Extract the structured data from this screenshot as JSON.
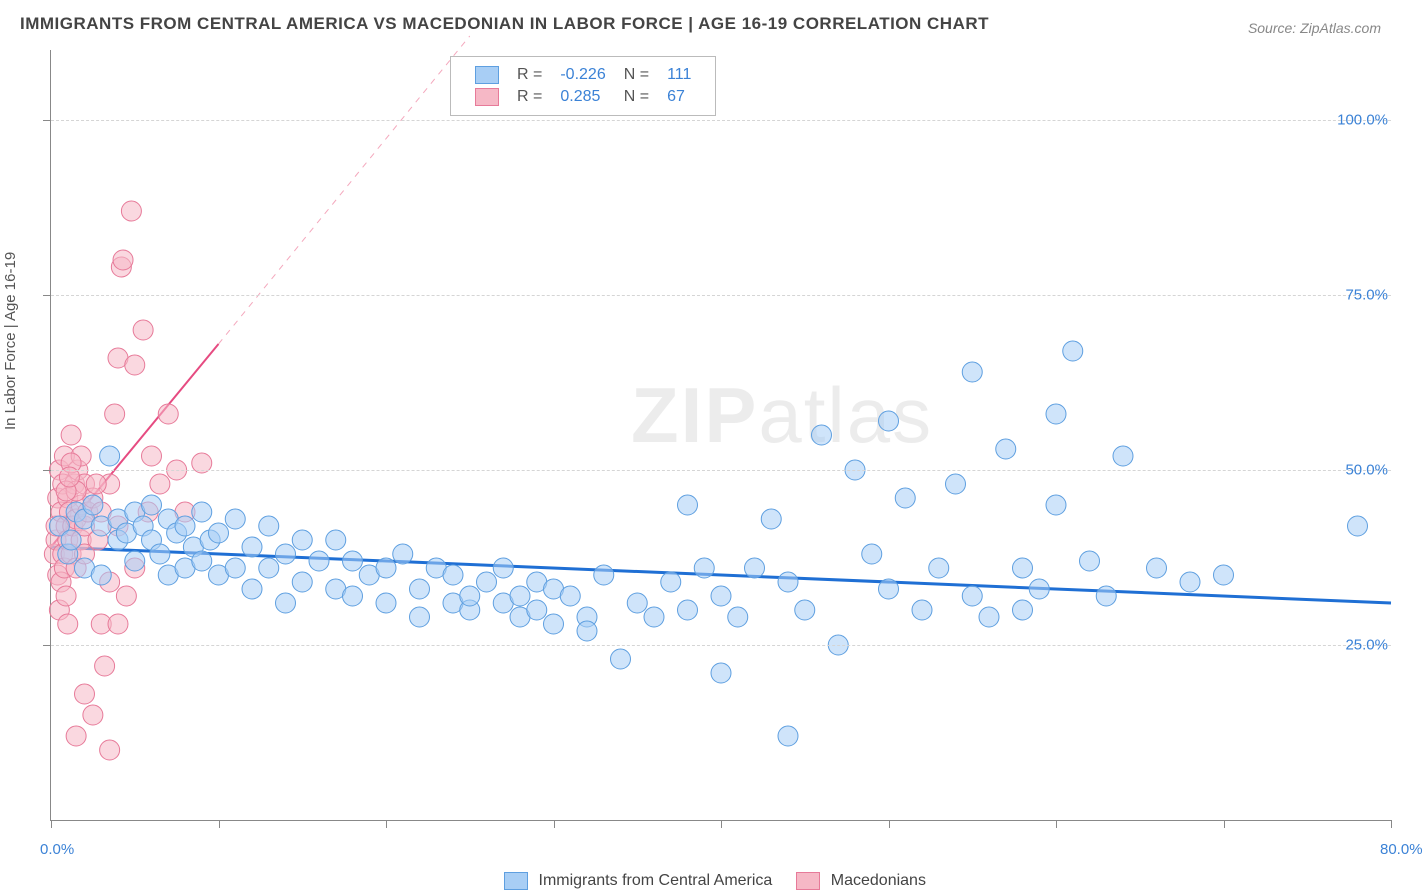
{
  "title": "IMMIGRANTS FROM CENTRAL AMERICA VS MACEDONIAN IN LABOR FORCE | AGE 16-19 CORRELATION CHART",
  "source": "Source: ZipAtlas.com",
  "y_axis_label": "In Labor Force | Age 16-19",
  "watermark_a": "ZIP",
  "watermark_b": "atlas",
  "chart": {
    "type": "scatter",
    "xlim": [
      0,
      80
    ],
    "ylim": [
      0,
      110
    ],
    "x_ticks": [
      0,
      10,
      20,
      30,
      40,
      50,
      60,
      70,
      80
    ],
    "x_tick_labels": {
      "0": "0.0%",
      "80": "80.0%"
    },
    "y_grid": [
      25,
      50,
      75,
      100
    ],
    "y_tick_labels": {
      "25": "25.0%",
      "50": "50.0%",
      "75": "75.0%",
      "100": "100.0%"
    },
    "background_color": "#ffffff",
    "grid_color": "#d5d5d5",
    "axis_color": "#888888",
    "tick_label_color": "#3b82d6",
    "series": [
      {
        "id": "central_america",
        "label": "Immigrants from Central America",
        "fill": "#a8cef5",
        "fill_opacity": 0.55,
        "stroke": "#5e9fe0",
        "marker_r": 10,
        "R": "-0.226",
        "N": "111",
        "trend": {
          "x1": 0,
          "y1": 39,
          "x2": 80,
          "y2": 31,
          "color": "#1f6fd4",
          "width": 3,
          "dash": {
            "x1": 0,
            "y1": 39,
            "x2": 0,
            "y2": 39
          }
        },
        "points": [
          [
            0.5,
            42
          ],
          [
            1,
            38
          ],
          [
            1.2,
            40
          ],
          [
            1.5,
            44
          ],
          [
            2,
            43
          ],
          [
            2,
            36
          ],
          [
            2.5,
            45
          ],
          [
            3,
            35
          ],
          [
            3,
            42
          ],
          [
            3.5,
            52
          ],
          [
            4,
            40
          ],
          [
            4,
            43
          ],
          [
            4.5,
            41
          ],
          [
            5,
            37
          ],
          [
            5,
            44
          ],
          [
            5.5,
            42
          ],
          [
            6,
            40
          ],
          [
            6,
            45
          ],
          [
            6.5,
            38
          ],
          [
            7,
            43
          ],
          [
            7,
            35
          ],
          [
            7.5,
            41
          ],
          [
            8,
            36
          ],
          [
            8,
            42
          ],
          [
            8.5,
            39
          ],
          [
            9,
            44
          ],
          [
            9,
            37
          ],
          [
            9.5,
            40
          ],
          [
            10,
            35
          ],
          [
            10,
            41
          ],
          [
            11,
            43
          ],
          [
            11,
            36
          ],
          [
            12,
            39
          ],
          [
            12,
            33
          ],
          [
            13,
            42
          ],
          [
            13,
            36
          ],
          [
            14,
            38
          ],
          [
            14,
            31
          ],
          [
            15,
            40
          ],
          [
            15,
            34
          ],
          [
            16,
            37
          ],
          [
            17,
            33
          ],
          [
            17,
            40
          ],
          [
            18,
            32
          ],
          [
            18,
            37
          ],
          [
            19,
            35
          ],
          [
            20,
            31
          ],
          [
            20,
            36
          ],
          [
            21,
            38
          ],
          [
            22,
            33
          ],
          [
            22,
            29
          ],
          [
            23,
            36
          ],
          [
            24,
            31
          ],
          [
            24,
            35
          ],
          [
            25,
            30
          ],
          [
            25,
            32
          ],
          [
            26,
            34
          ],
          [
            27,
            31
          ],
          [
            27,
            36
          ],
          [
            28,
            29
          ],
          [
            28,
            32
          ],
          [
            29,
            34
          ],
          [
            29,
            30
          ],
          [
            30,
            33
          ],
          [
            30,
            28
          ],
          [
            31,
            32
          ],
          [
            32,
            29
          ],
          [
            32,
            27
          ],
          [
            33,
            35
          ],
          [
            34,
            23
          ],
          [
            35,
            31
          ],
          [
            36,
            29
          ],
          [
            37,
            34
          ],
          [
            38,
            45
          ],
          [
            38,
            30
          ],
          [
            39,
            36
          ],
          [
            40,
            21
          ],
          [
            40,
            32
          ],
          [
            41,
            29
          ],
          [
            42,
            36
          ],
          [
            43,
            43
          ],
          [
            44,
            12
          ],
          [
            44,
            34
          ],
          [
            45,
            30
          ],
          [
            46,
            55
          ],
          [
            47,
            25
          ],
          [
            48,
            50
          ],
          [
            49,
            38
          ],
          [
            50,
            57
          ],
          [
            50,
            33
          ],
          [
            51,
            46
          ],
          [
            52,
            30
          ],
          [
            53,
            36
          ],
          [
            54,
            48
          ],
          [
            55,
            32
          ],
          [
            55,
            64
          ],
          [
            56,
            29
          ],
          [
            57,
            53
          ],
          [
            58,
            36
          ],
          [
            58,
            30
          ],
          [
            59,
            33
          ],
          [
            60,
            58
          ],
          [
            60,
            45
          ],
          [
            61,
            67
          ],
          [
            62,
            37
          ],
          [
            63,
            32
          ],
          [
            64,
            52
          ],
          [
            66,
            36
          ],
          [
            68,
            34
          ],
          [
            70,
            35
          ],
          [
            78,
            42
          ]
        ]
      },
      {
        "id": "macedonians",
        "label": "Macedonians",
        "fill": "#f6b8c6",
        "fill_opacity": 0.55,
        "stroke": "#e77a99",
        "marker_r": 10,
        "R": "0.285",
        "N": "67",
        "trend_solid": {
          "x1": 0,
          "y1": 39,
          "x2": 10,
          "y2": 68,
          "color": "#e64b81",
          "width": 2
        },
        "trend_dash": {
          "x1": 10,
          "y1": 68,
          "x2": 25,
          "y2": 112,
          "color": "#f4a8bd",
          "width": 1
        },
        "points": [
          [
            0.2,
            38
          ],
          [
            0.3,
            40
          ],
          [
            0.3,
            42
          ],
          [
            0.4,
            35
          ],
          [
            0.4,
            46
          ],
          [
            0.5,
            30
          ],
          [
            0.5,
            50
          ],
          [
            0.6,
            44
          ],
          [
            0.6,
            34
          ],
          [
            0.7,
            48
          ],
          [
            0.7,
            38
          ],
          [
            0.8,
            52
          ],
          [
            0.8,
            36
          ],
          [
            0.9,
            42
          ],
          [
            0.9,
            32
          ],
          [
            1,
            46
          ],
          [
            1,
            40
          ],
          [
            1,
            28
          ],
          [
            1.1,
            44
          ],
          [
            1.2,
            55
          ],
          [
            1.2,
            38
          ],
          [
            1.3,
            42
          ],
          [
            1.4,
            48
          ],
          [
            1.5,
            36
          ],
          [
            1.5,
            43
          ],
          [
            1.6,
            50
          ],
          [
            1.8,
            40
          ],
          [
            1.8,
            45
          ],
          [
            2,
            42
          ],
          [
            2,
            38
          ],
          [
            2,
            48
          ],
          [
            2.2,
            44
          ],
          [
            2.5,
            46
          ],
          [
            2.5,
            15
          ],
          [
            2.8,
            40
          ],
          [
            3,
            28
          ],
          [
            3,
            44
          ],
          [
            3.2,
            22
          ],
          [
            3.5,
            48
          ],
          [
            3.5,
            34
          ],
          [
            3.8,
            58
          ],
          [
            4,
            42
          ],
          [
            4,
            66
          ],
          [
            4.2,
            79
          ],
          [
            4.3,
            80
          ],
          [
            4.5,
            32
          ],
          [
            4.8,
            87
          ],
          [
            5,
            65
          ],
          [
            5,
            36
          ],
          [
            5.5,
            70
          ],
          [
            5.8,
            44
          ],
          [
            6,
            52
          ],
          [
            6.5,
            48
          ],
          [
            7,
            58
          ],
          [
            7.5,
            50
          ],
          [
            8,
            44
          ],
          [
            9,
            51
          ],
          [
            1.5,
            12
          ],
          [
            2,
            18
          ],
          [
            3.5,
            10
          ],
          [
            4,
            28
          ],
          [
            2.7,
            48
          ],
          [
            1.8,
            52
          ],
          [
            1.2,
            51
          ],
          [
            1.5,
            47
          ],
          [
            0.9,
            47
          ],
          [
            1.1,
            49
          ]
        ]
      }
    ]
  },
  "legend_box": {
    "r_label": "R =",
    "n_label": "N ="
  },
  "bottom_legend_items": [
    {
      "series": 0
    },
    {
      "series": 1
    }
  ]
}
